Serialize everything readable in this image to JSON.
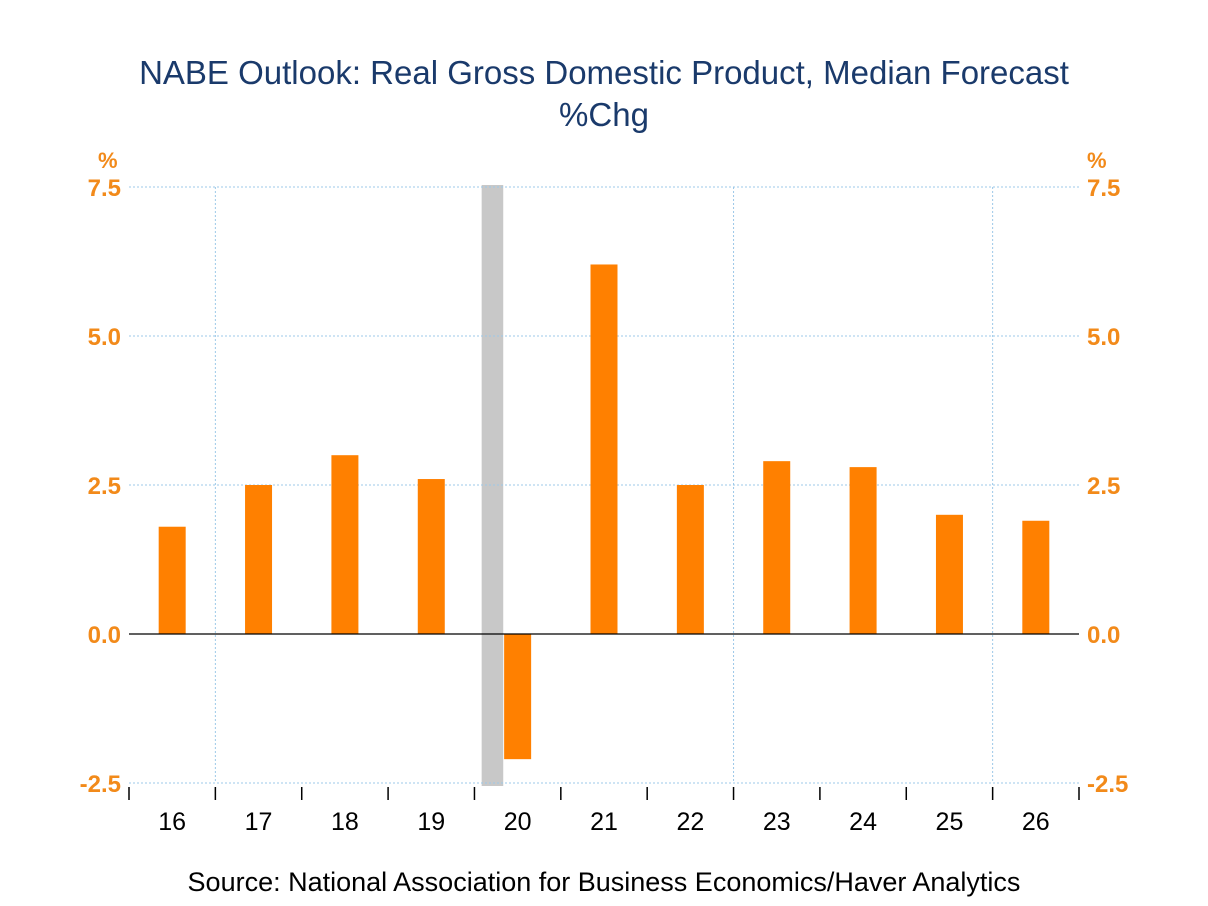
{
  "chart_data": {
    "type": "bar",
    "title": "NABE Outlook: Real Gross Domestic Product, Median Forecast",
    "subtitle": "%Chg",
    "ylabel_left": "%",
    "ylabel_right": "%",
    "categories": [
      "16",
      "17",
      "18",
      "19",
      "20",
      "21",
      "22",
      "23",
      "24",
      "25",
      "26"
    ],
    "values": [
      1.8,
      2.5,
      3.0,
      2.6,
      -2.1,
      6.2,
      2.5,
      2.9,
      2.8,
      2.0,
      1.9
    ],
    "ylim": [
      -2.5,
      7.5
    ],
    "yticks": [
      "-2.5",
      "0.0",
      "2.5",
      "5.0",
      "7.5"
    ],
    "ytick_values": [
      -2.5,
      0,
      2.5,
      5.0,
      7.5
    ],
    "grid": true,
    "shaded_period": [
      "2020-02",
      "2020-04"
    ],
    "colors": {
      "bar": "#ff8000",
      "shading": "#c8c8c8",
      "title": "#1a3a6b",
      "axis_labels": "#f28a1a",
      "grid": "#9cc8e8"
    },
    "source": "Source:  National Association for Business Economics/Haver Analytics"
  }
}
